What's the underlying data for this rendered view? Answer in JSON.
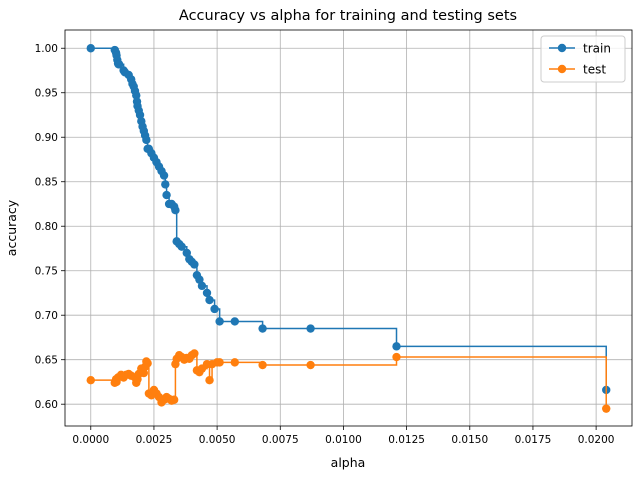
{
  "chart_data": {
    "type": "line",
    "title": "Accuracy vs alpha for training and testing sets",
    "xlabel": "alpha",
    "ylabel": "accuracy",
    "xlim": [
      -0.00102,
      0.02142
    ],
    "ylim": [
      0.5755,
      1.0205
    ],
    "x_ticks": [
      0.0,
      0.0025,
      0.005,
      0.0075,
      0.01,
      0.0125,
      0.015,
      0.0175,
      0.02
    ],
    "x_tick_labels": [
      "0.0000",
      "0.0025",
      "0.0050",
      "0.0075",
      "0.0100",
      "0.0125",
      "0.0150",
      "0.0175",
      "0.0200"
    ],
    "y_ticks": [
      0.6,
      0.65,
      0.7,
      0.75,
      0.8,
      0.85,
      0.9,
      0.95,
      1.0
    ],
    "y_tick_labels": [
      "0.60",
      "0.65",
      "0.70",
      "0.75",
      "0.80",
      "0.85",
      "0.90",
      "0.95",
      "1.00"
    ],
    "grid": true,
    "drawstyle": "steps-post",
    "legend_position": "top-right",
    "series": [
      {
        "name": "train",
        "color": "#1f77b4",
        "x": [
          0.0,
          0.00095,
          0.001,
          0.00102,
          0.00105,
          0.00108,
          0.0011,
          0.00112,
          0.0013,
          0.00135,
          0.0015,
          0.0016,
          0.00165,
          0.0017,
          0.00175,
          0.0018,
          0.00183,
          0.00185,
          0.0019,
          0.00195,
          0.002,
          0.00205,
          0.0021,
          0.00215,
          0.0022,
          0.00225,
          0.0023,
          0.0024,
          0.0025,
          0.0026,
          0.0027,
          0.0028,
          0.0029,
          0.00295,
          0.003,
          0.0031,
          0.0032,
          0.0033,
          0.00335,
          0.0034,
          0.0035,
          0.0036,
          0.0038,
          0.0039,
          0.004,
          0.0041,
          0.0042,
          0.0043,
          0.0044,
          0.0046,
          0.0047,
          0.0049,
          0.0051,
          0.0057,
          0.0068,
          0.0087,
          0.0121,
          0.0204
        ],
        "y": [
          1.0,
          0.998,
          0.995,
          0.992,
          0.987,
          0.983,
          0.982,
          0.982,
          0.975,
          0.973,
          0.97,
          0.965,
          0.96,
          0.957,
          0.952,
          0.947,
          0.94,
          0.935,
          0.93,
          0.925,
          0.918,
          0.912,
          0.907,
          0.902,
          0.897,
          0.887,
          0.887,
          0.882,
          0.877,
          0.872,
          0.867,
          0.862,
          0.857,
          0.847,
          0.835,
          0.825,
          0.825,
          0.822,
          0.818,
          0.783,
          0.78,
          0.777,
          0.77,
          0.763,
          0.76,
          0.757,
          0.745,
          0.74,
          0.733,
          0.725,
          0.717,
          0.707,
          0.693,
          0.693,
          0.685,
          0.685,
          0.665,
          0.616
        ]
      },
      {
        "name": "test",
        "color": "#ff7f0e",
        "x": [
          0.0,
          0.00095,
          0.001,
          0.00102,
          0.00108,
          0.0012,
          0.0013,
          0.0014,
          0.0015,
          0.0016,
          0.00175,
          0.0018,
          0.00185,
          0.0019,
          0.002,
          0.00205,
          0.0021,
          0.00215,
          0.0022,
          0.00225,
          0.0023,
          0.0024,
          0.0025,
          0.0026,
          0.0027,
          0.0028,
          0.0029,
          0.003,
          0.0031,
          0.0032,
          0.0033,
          0.00335,
          0.0034,
          0.0035,
          0.0036,
          0.0037,
          0.0038,
          0.0039,
          0.004,
          0.0041,
          0.0042,
          0.0043,
          0.0044,
          0.0046,
          0.0047,
          0.0048,
          0.005,
          0.0051,
          0.0057,
          0.0068,
          0.0087,
          0.0121,
          0.0204
        ],
        "y": [
          0.627,
          0.624,
          0.628,
          0.625,
          0.63,
          0.633,
          0.63,
          0.633,
          0.634,
          0.632,
          0.63,
          0.624,
          0.628,
          0.634,
          0.64,
          0.638,
          0.635,
          0.642,
          0.648,
          0.646,
          0.612,
          0.61,
          0.616,
          0.612,
          0.608,
          0.602,
          0.605,
          0.608,
          0.606,
          0.604,
          0.605,
          0.645,
          0.651,
          0.655,
          0.653,
          0.65,
          0.652,
          0.651,
          0.655,
          0.657,
          0.638,
          0.636,
          0.64,
          0.645,
          0.627,
          0.645,
          0.647,
          0.647,
          0.647,
          0.644,
          0.644,
          0.653,
          0.595
        ]
      }
    ]
  }
}
